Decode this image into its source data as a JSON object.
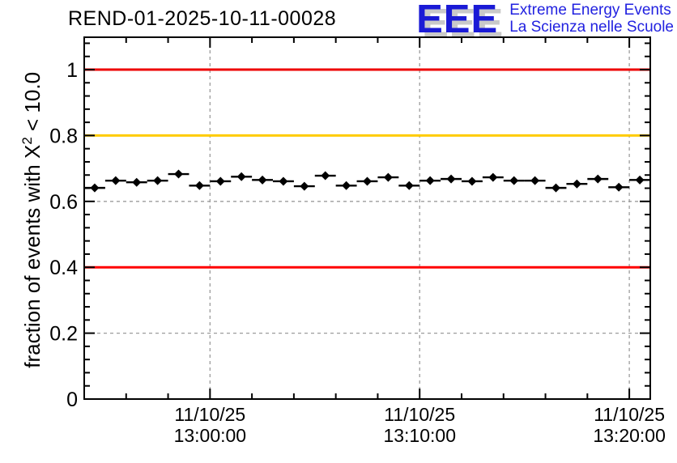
{
  "header": {
    "title": "REND-01-2025-10-11-00028",
    "logo": {
      "acronym": "EEE",
      "tagline_line1": "Extreme Energy Events",
      "tagline_line2": "La Scienza nelle Scuole",
      "text_color": "#2222e0",
      "shadow_color": "#c9c9c9"
    }
  },
  "chart_data": {
    "type": "scatter",
    "title": "REND-01-2025-10-11-00028",
    "ylabel": {
      "prefix": "fraction of events with X",
      "sup": "2",
      "suffix": " < 10.0"
    },
    "y_axis": {
      "min": 0,
      "max": 1.1,
      "major_tick_labels": [
        "0",
        "0.2",
        "0.4",
        "0.6",
        "0.8",
        "1"
      ],
      "major_tick_values": [
        0,
        0.2,
        0.4,
        0.6,
        0.8,
        1.0
      ],
      "minor_step": 0.04
    },
    "x_axis": {
      "start_time": "12:54:00",
      "end_time": "13:21:00",
      "date": "11/10/25",
      "major_ticks": [
        {
          "date": "11/10/25",
          "time": "13:00:00"
        },
        {
          "date": "11/10/25",
          "time": "13:10:00"
        },
        {
          "date": "11/10/25",
          "time": "13:20:00"
        }
      ],
      "minor_step_seconds": 120
    },
    "grid": {
      "show": true,
      "color": "#9c9c9c",
      "dash": "4 4"
    },
    "threshold_lines": [
      {
        "value": 1.0,
        "color": "#ee0000"
      },
      {
        "value": 0.8,
        "color": "#ffcc00"
      },
      {
        "value": 0.4,
        "color": "#ff0000"
      }
    ],
    "marker": {
      "shape": "diamond",
      "color": "#000000",
      "size": 11
    },
    "bin_width_seconds": 60,
    "points": [
      {
        "time": "12:54:30",
        "value": 0.641
      },
      {
        "time": "12:55:30",
        "value": 0.663
      },
      {
        "time": "12:56:30",
        "value": 0.658
      },
      {
        "time": "12:57:30",
        "value": 0.663
      },
      {
        "time": "12:58:30",
        "value": 0.683
      },
      {
        "time": "12:59:30",
        "value": 0.648
      },
      {
        "time": "13:00:30",
        "value": 0.661
      },
      {
        "time": "13:01:30",
        "value": 0.675
      },
      {
        "time": "13:02:30",
        "value": 0.665
      },
      {
        "time": "13:03:30",
        "value": 0.661
      },
      {
        "time": "13:04:30",
        "value": 0.646
      },
      {
        "time": "13:05:30",
        "value": 0.678
      },
      {
        "time": "13:06:30",
        "value": 0.648
      },
      {
        "time": "13:07:30",
        "value": 0.661
      },
      {
        "time": "13:08:30",
        "value": 0.673
      },
      {
        "time": "13:09:30",
        "value": 0.648
      },
      {
        "time": "13:10:30",
        "value": 0.663
      },
      {
        "time": "13:11:30",
        "value": 0.668
      },
      {
        "time": "13:12:30",
        "value": 0.661
      },
      {
        "time": "13:13:30",
        "value": 0.673
      },
      {
        "time": "13:14:30",
        "value": 0.663
      },
      {
        "time": "13:15:30",
        "value": 0.663
      },
      {
        "time": "13:16:30",
        "value": 0.641
      },
      {
        "time": "13:17:30",
        "value": 0.653
      },
      {
        "time": "13:18:30",
        "value": 0.668
      },
      {
        "time": "13:19:30",
        "value": 0.643
      },
      {
        "time": "13:20:30",
        "value": 0.665
      }
    ]
  }
}
